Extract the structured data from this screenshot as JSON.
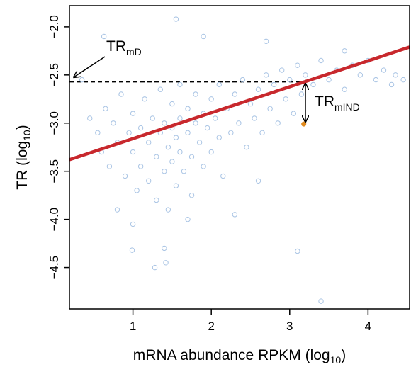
{
  "chart_data": {
    "type": "scatter",
    "x_label": {
      "text": "mRNA abundance RPKM (log",
      "sub": "10",
      "tail": ")"
    },
    "y_label": {
      "text": "TR (log",
      "sub": "10",
      "tail": ")"
    },
    "annotations": [
      {
        "text": "TR",
        "sub": "mD"
      },
      {
        "text": "TR",
        "sub": "mIND"
      }
    ],
    "xlim": [
      0.19,
      4.53
    ],
    "ylim": [
      -4.93,
      -1.78
    ],
    "xticks": [
      1,
      2,
      3,
      4
    ],
    "yticks": [
      {
        "value": -2.0,
        "label": "−2.0"
      },
      {
        "value": -2.5,
        "label": "−2.5"
      },
      {
        "value": -3.0,
        "label": "−3.0"
      },
      {
        "value": -3.5,
        "label": "−3.5"
      },
      {
        "value": -4.0,
        "label": "−4.0"
      },
      {
        "value": -4.5,
        "label": "−4.5"
      }
    ],
    "series": [
      {
        "color": "#a9c4e4",
        "x": [
          0.45,
          0.55,
          0.6,
          0.65,
          0.7,
          0.75,
          0.8,
          0.85,
          0.9,
          0.95,
          1.0,
          1.0,
          1.05,
          1.1,
          1.1,
          1.15,
          1.2,
          1.2,
          1.25,
          1.3,
          1.3,
          1.35,
          1.35,
          1.4,
          1.4,
          1.45,
          1.45,
          1.5,
          1.5,
          1.5,
          1.55,
          1.55,
          1.6,
          1.6,
          1.6,
          1.65,
          1.7,
          1.7,
          1.75,
          1.75,
          1.8,
          1.8,
          1.85,
          1.9,
          1.9,
          1.95,
          2.0,
          2.0,
          2.05,
          2.1,
          2.1,
          2.15,
          2.2,
          2.25,
          2.3,
          2.35,
          2.4,
          2.45,
          2.5,
          2.55,
          2.6,
          2.65,
          2.7,
          2.75,
          2.8,
          2.85,
          2.9,
          2.95,
          3.0,
          3.05,
          3.1,
          3.15,
          3.2,
          3.3,
          3.4,
          3.5,
          3.6,
          3.7,
          3.8,
          3.9,
          4.0,
          4.1,
          4.2,
          4.3,
          0.35,
          0.63,
          1.55,
          1.9,
          2.7,
          3.7,
          4.35,
          4.45,
          0.99,
          1.28,
          1.42,
          1.4,
          3.1,
          3.4,
          1.0,
          1.7,
          2.3,
          0.8,
          2.6
        ],
        "y": [
          -2.95,
          -3.1,
          -3.3,
          -2.85,
          -3.45,
          -3.0,
          -3.2,
          -2.7,
          -3.55,
          -3.1,
          -3.3,
          -2.9,
          -3.7,
          -3.05,
          -3.45,
          -2.75,
          -3.2,
          -3.6,
          -2.95,
          -3.35,
          -3.8,
          -3.1,
          -2.65,
          -3.5,
          -3.0,
          -3.25,
          -3.9,
          -3.05,
          -2.8,
          -3.4,
          -3.15,
          -3.65,
          -2.95,
          -3.3,
          -2.6,
          -3.5,
          -3.1,
          -2.85,
          -3.35,
          -3.75,
          -3.0,
          -2.7,
          -3.2,
          -2.9,
          -3.45,
          -3.05,
          -2.75,
          -3.3,
          -2.95,
          -3.15,
          -2.6,
          -3.55,
          -2.85,
          -3.1,
          -2.7,
          -3.0,
          -2.55,
          -3.25,
          -2.8,
          -2.95,
          -2.65,
          -3.1,
          -2.5,
          -2.85,
          -2.6,
          -3.0,
          -2.45,
          -2.75,
          -2.55,
          -2.9,
          -2.4,
          -2.7,
          -2.5,
          -2.6,
          -2.35,
          -2.55,
          -2.45,
          -2.65,
          -2.4,
          -2.5,
          -2.35,
          -2.55,
          -2.45,
          -2.6,
          -2.55,
          -2.1,
          -1.92,
          -2.1,
          -2.15,
          -2.25,
          -2.5,
          -2.55,
          -4.32,
          -4.5,
          -4.45,
          -4.3,
          -4.33,
          -4.85,
          -4.05,
          -4.0,
          -3.95,
          -3.9,
          -3.6
        ]
      },
      {
        "color": "#e08a1e",
        "x": [
          3.18
        ],
        "y": [
          -3.01
        ]
      }
    ],
    "fit": {
      "color": "#c8282d",
      "x": [
        0.19,
        4.53
      ],
      "y": [
        -3.38,
        -2.21
      ]
    },
    "dashed": {
      "x": [
        0.19,
        3.18
      ],
      "y": [
        -2.57,
        -2.57
      ]
    }
  }
}
